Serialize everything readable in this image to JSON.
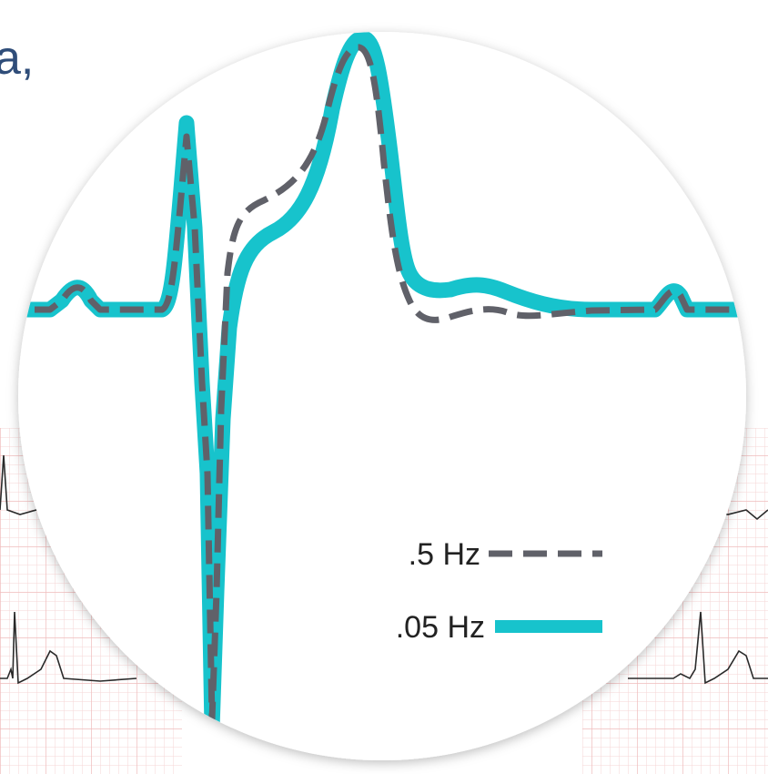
{
  "text_fragment": "a,",
  "colors": {
    "accent_teal": "#17c3cc",
    "dashed_gray": "#606169",
    "grid_pink": "#f2c4c4",
    "trace_black": "#2a2a2a",
    "circle_fill": "#ffffff",
    "fragment_text": "#2f4d79"
  },
  "legend": [
    {
      "label": ".5 Hz",
      "style": "dashed",
      "color": "#606169"
    },
    {
      "label": ".05 Hz",
      "style": "solid",
      "color": "#17c3cc"
    }
  ]
}
